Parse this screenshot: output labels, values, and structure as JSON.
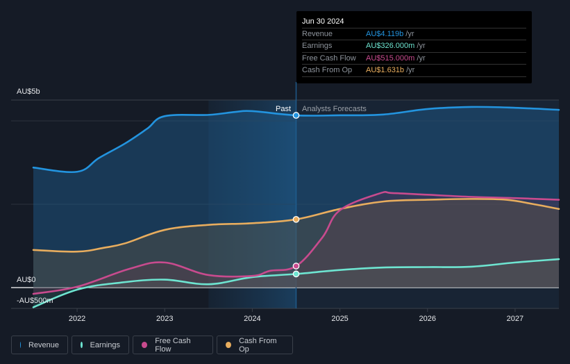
{
  "tooltip": {
    "date": "Jun 30 2024",
    "rows": [
      {
        "label": "Revenue",
        "value": "AU$4.119b",
        "unit": " /yr",
        "color": "#2394df"
      },
      {
        "label": "Earnings",
        "value": "AU$326.000m",
        "unit": " /yr",
        "color": "#6ee5d1"
      },
      {
        "label": "Free Cash Flow",
        "value": "AU$515.000m",
        "unit": " /yr",
        "color": "#c84b8e"
      },
      {
        "label": "Cash From Op",
        "value": "AU$1.631b",
        "unit": " /yr",
        "color": "#e8ad5e"
      }
    ]
  },
  "legend": [
    {
      "label": "Revenue",
      "color": "#2394df"
    },
    {
      "label": "Earnings",
      "color": "#6ee5d1"
    },
    {
      "label": "Free Cash Flow",
      "color": "#c84b8e"
    },
    {
      "label": "Cash From Op",
      "color": "#e8ad5e"
    }
  ],
  "chart_data": {
    "type": "line",
    "title": "",
    "xlabel": "",
    "ylabel": "",
    "y_tick_labels": [
      "AU$5b",
      "AU$0",
      "-AU$500m"
    ],
    "x_tick_labels": [
      "2022",
      "2023",
      "2024",
      "2025",
      "2026",
      "2027"
    ],
    "x_ticks": [
      2022,
      2023,
      2024,
      2025,
      2026,
      2027
    ],
    "xlim": [
      2021.5,
      2027.5
    ],
    "ylim": [
      -0.5,
      4.6
    ],
    "units": "AU$ billions",
    "region_labels": {
      "past": "Past",
      "forecast": "Analysts Forecasts"
    },
    "past_end": 2024.5,
    "highlight_start": 2023.5,
    "series": [
      {
        "name": "Revenue",
        "color": "#2394df",
        "x": [
          2021.5,
          2022.0,
          2022.25,
          2022.55,
          2022.8,
          2023.0,
          2023.5,
          2023.8,
          2024.0,
          2024.5,
          2025.0,
          2025.5,
          2026.0,
          2026.5,
          2027.0,
          2027.5
        ],
        "y": [
          2.87,
          2.77,
          3.1,
          3.45,
          3.8,
          4.1,
          4.13,
          4.2,
          4.22,
          4.119,
          4.12,
          4.14,
          4.27,
          4.32,
          4.3,
          4.25
        ]
      },
      {
        "name": "Earnings",
        "color": "#6ee5d1",
        "x": [
          2021.5,
          2022.0,
          2022.5,
          2023.0,
          2023.5,
          2024.0,
          2024.5,
          2025.0,
          2025.5,
          2026.0,
          2026.5,
          2027.0,
          2027.5
        ],
        "y": [
          -0.47,
          -0.05,
          0.12,
          0.19,
          0.08,
          0.25,
          0.326,
          0.42,
          0.48,
          0.49,
          0.5,
          0.6,
          0.68
        ]
      },
      {
        "name": "Free Cash Flow",
        "color": "#c84b8e",
        "x": [
          2021.5,
          2022.0,
          2022.6,
          2023.0,
          2023.5,
          2024.0,
          2024.2,
          2024.5,
          2024.8,
          2025.0,
          2025.45,
          2025.6,
          2026.0,
          2026.5,
          2027.0,
          2027.5
        ],
        "y": [
          -0.15,
          0.02,
          0.45,
          0.6,
          0.3,
          0.28,
          0.4,
          0.515,
          1.2,
          1.85,
          2.25,
          2.26,
          2.22,
          2.17,
          2.14,
          2.1
        ]
      },
      {
        "name": "Cash From Op",
        "color": "#e8ad5e",
        "x": [
          2021.5,
          2022.0,
          2022.3,
          2022.55,
          2023.0,
          2023.5,
          2024.0,
          2024.5,
          2025.0,
          2025.5,
          2026.0,
          2026.5,
          2026.9,
          2027.2,
          2027.5
        ],
        "y": [
          0.9,
          0.86,
          0.95,
          1.06,
          1.38,
          1.5,
          1.54,
          1.631,
          1.88,
          2.06,
          2.1,
          2.12,
          2.1,
          2.0,
          1.88
        ]
      }
    ],
    "highlighted_points": [
      {
        "series": "Revenue",
        "x": 2024.5,
        "y": 4.119
      },
      {
        "series": "Earnings",
        "x": 2024.5,
        "y": 0.326
      },
      {
        "series": "Free Cash Flow",
        "x": 2024.5,
        "y": 0.515
      },
      {
        "series": "Cash From Op",
        "x": 2024.5,
        "y": 1.631
      }
    ],
    "grid": true,
    "legend_position": "bottom-left"
  }
}
